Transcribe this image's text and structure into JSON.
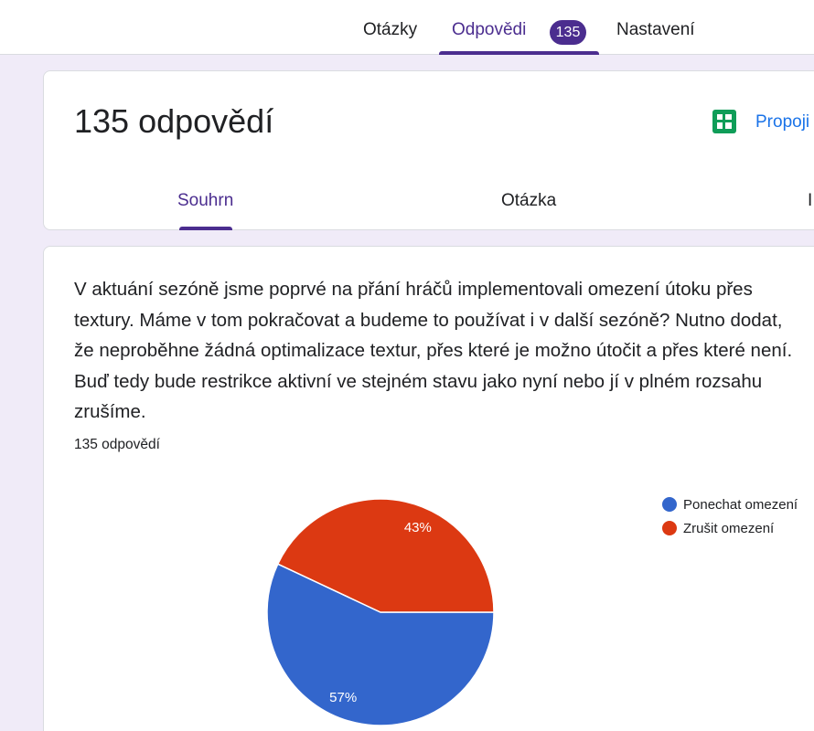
{
  "nav": {
    "tabs": [
      {
        "label": "Otázky"
      },
      {
        "label": "Odpovědi",
        "badge": "135"
      },
      {
        "label": "Nastavení"
      }
    ]
  },
  "header": {
    "title": "135 odpovědí",
    "sheets_link": "Propoji",
    "tabs": [
      {
        "label": "Souhrn"
      },
      {
        "label": "Otázka"
      },
      {
        "label": "I"
      }
    ]
  },
  "question": {
    "text": "V aktuání sezóně jsme poprvé na přání hráčů implementovali omezení útoku přes textury. Máme v tom pokračovat a budeme to používat i v další sezóně? Nutno dodat, že neproběhne žádná optimalizace textur, přes které je možno útočit a přes které není. Buď tedy bude restrikce aktivní ve stejném stavu jako nyní nebo jí v plném rozsahu zrušíme.",
    "response_count": "135 odpovědí"
  },
  "colors": {
    "accent": "#4b2d8f",
    "link": "#1a73e8",
    "background": "#f0ebf8",
    "sheets_green": "#0f9d58"
  },
  "chart_data": {
    "type": "pie",
    "labels": [
      "Ponechat omezení",
      "Zrušit omezení"
    ],
    "values": [
      57,
      43
    ],
    "data_labels": [
      "57%",
      "43%"
    ],
    "colors": [
      "#3366cc",
      "#dc3912"
    ],
    "legend_position": "right"
  }
}
